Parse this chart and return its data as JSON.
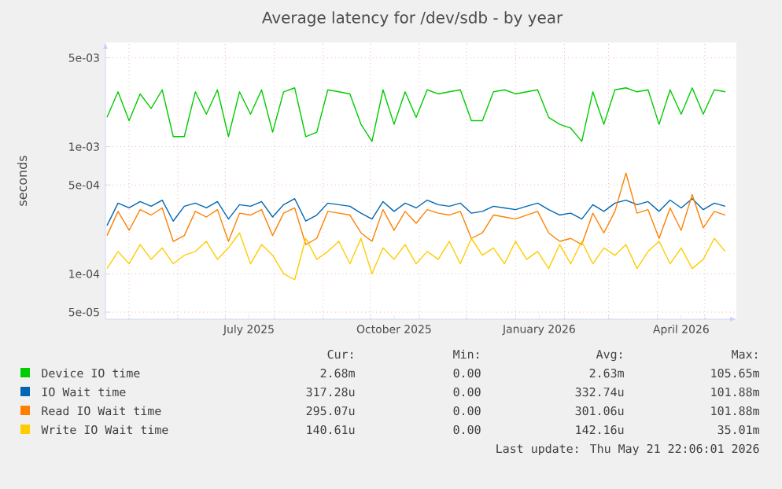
{
  "chart_data": {
    "type": "line",
    "title": "Average latency for /dev/sdb - by year",
    "ylabel": "seconds",
    "log": true,
    "grid": true,
    "legend": "bottom",
    "xlim": [
      "2025-04-16",
      "2026-05-21"
    ],
    "ylim": [
      4.4e-05,
      0.0066
    ],
    "yticks": [
      {
        "value": 5e-05,
        "label": "5e-05"
      },
      {
        "value": 0.0001,
        "label": "1e-04"
      },
      {
        "value": 0.0005,
        "label": "5e-04"
      },
      {
        "value": 0.001,
        "label": "1e-03"
      },
      {
        "value": 0.005,
        "label": "5e-03"
      }
    ],
    "xticks": [
      {
        "value": "2025-05-01",
        "label": null
      },
      {
        "value": "2025-06-01",
        "label": null
      },
      {
        "value": "2025-07-01",
        "label": null
      },
      {
        "value": "2025-07-16",
        "label": "July 2025"
      },
      {
        "value": "2025-08-01",
        "label": null
      },
      {
        "value": "2025-09-01",
        "label": null
      },
      {
        "value": "2025-10-01",
        "label": null
      },
      {
        "value": "2025-10-16",
        "label": "October 2025"
      },
      {
        "value": "2025-11-01",
        "label": null
      },
      {
        "value": "2025-12-01",
        "label": null
      },
      {
        "value": "2026-01-01",
        "label": null
      },
      {
        "value": "2026-01-16",
        "label": "January 2026"
      },
      {
        "value": "2026-02-01",
        "label": null
      },
      {
        "value": "2026-03-01",
        "label": null
      },
      {
        "value": "2026-04-01",
        "label": null
      },
      {
        "value": "2026-04-16",
        "label": "April 2026"
      },
      {
        "value": "2026-05-01",
        "label": null
      }
    ],
    "x": [
      "2025-04-17",
      "2025-04-24",
      "2025-05-01",
      "2025-05-08",
      "2025-05-15",
      "2025-05-22",
      "2025-05-29",
      "2025-06-05",
      "2025-06-12",
      "2025-06-19",
      "2025-06-26",
      "2025-07-03",
      "2025-07-10",
      "2025-07-17",
      "2025-07-24",
      "2025-07-31",
      "2025-08-07",
      "2025-08-14",
      "2025-08-21",
      "2025-08-28",
      "2025-09-04",
      "2025-09-11",
      "2025-09-18",
      "2025-09-25",
      "2025-10-02",
      "2025-10-09",
      "2025-10-16",
      "2025-10-23",
      "2025-10-30",
      "2025-11-06",
      "2025-11-13",
      "2025-11-20",
      "2025-11-27",
      "2025-12-04",
      "2025-12-11",
      "2025-12-18",
      "2025-12-25",
      "2026-01-01",
      "2026-01-08",
      "2026-01-15",
      "2026-01-22",
      "2026-01-29",
      "2026-02-05",
      "2026-02-12",
      "2026-02-19",
      "2026-02-26",
      "2026-03-05",
      "2026-03-12",
      "2026-03-19",
      "2026-03-26",
      "2026-04-02",
      "2026-04-09",
      "2026-04-16",
      "2026-04-23",
      "2026-04-30",
      "2026-05-07",
      "2026-05-14"
    ],
    "series": [
      {
        "name": "Device IO time",
        "color": "#00cc00",
        "values": [
          0.0017,
          0.0027,
          0.0016,
          0.0026,
          0.002,
          0.0028,
          0.0012,
          0.0012,
          0.0027,
          0.0018,
          0.0028,
          0.0012,
          0.0027,
          0.0018,
          0.0028,
          0.0013,
          0.0027,
          0.0029,
          0.0012,
          0.0013,
          0.0028,
          0.0027,
          0.0026,
          0.0015,
          0.0011,
          0.0028,
          0.0015,
          0.0027,
          0.0017,
          0.0028,
          0.0026,
          0.0027,
          0.0028,
          0.0016,
          0.0016,
          0.0027,
          0.0028,
          0.0026,
          0.0027,
          0.0028,
          0.0017,
          0.0015,
          0.0014,
          0.0011,
          0.0027,
          0.0015,
          0.0028,
          0.0029,
          0.0027,
          0.0028,
          0.0015,
          0.0028,
          0.0018,
          0.0029,
          0.0018,
          0.0028,
          0.0027
        ]
      },
      {
        "name": "IO Wait time",
        "color": "#0066b3",
        "values": [
          0.00024,
          0.00036,
          0.00033,
          0.00037,
          0.00034,
          0.00038,
          0.00026,
          0.00034,
          0.00036,
          0.00033,
          0.00037,
          0.00027,
          0.00035,
          0.00034,
          0.00037,
          0.00028,
          0.00035,
          0.00039,
          0.00026,
          0.00029,
          0.00036,
          0.00035,
          0.00034,
          0.0003,
          0.00027,
          0.00037,
          0.00031,
          0.00036,
          0.00033,
          0.00038,
          0.00035,
          0.00034,
          0.00036,
          0.0003,
          0.00031,
          0.00034,
          0.00033,
          0.00032,
          0.00034,
          0.00036,
          0.00032,
          0.00029,
          0.0003,
          0.00027,
          0.00035,
          0.00031,
          0.00036,
          0.00038,
          0.00035,
          0.00037,
          0.00031,
          0.00038,
          0.00033,
          0.00039,
          0.00032,
          0.00036,
          0.00034
        ]
      },
      {
        "name": "Read IO Wait time",
        "color": "#ff8000",
        "values": [
          0.0002,
          0.00031,
          0.00022,
          0.00032,
          0.00029,
          0.00033,
          0.00018,
          0.0002,
          0.00031,
          0.00028,
          0.00032,
          0.00018,
          0.0003,
          0.00029,
          0.00032,
          0.0002,
          0.0003,
          0.00033,
          0.00017,
          0.00019,
          0.00031,
          0.0003,
          0.00029,
          0.00021,
          0.00018,
          0.00032,
          0.00022,
          0.00031,
          0.00025,
          0.00032,
          0.0003,
          0.00029,
          0.00031,
          0.00019,
          0.00021,
          0.00029,
          0.00028,
          0.00027,
          0.00029,
          0.00031,
          0.00021,
          0.00018,
          0.00019,
          0.00017,
          0.0003,
          0.00021,
          0.00031,
          0.00062,
          0.0003,
          0.00032,
          0.00019,
          0.00033,
          0.00022,
          0.00042,
          0.00023,
          0.00031,
          0.00029
        ]
      },
      {
        "name": "Write IO Wait time",
        "color": "#ffcc00",
        "values": [
          0.00011,
          0.00015,
          0.00012,
          0.00017,
          0.00013,
          0.00016,
          0.00012,
          0.00014,
          0.00015,
          0.00018,
          0.00013,
          0.00016,
          0.00021,
          0.00012,
          0.00017,
          0.00014,
          0.0001,
          9e-05,
          0.00019,
          0.00013,
          0.00015,
          0.00018,
          0.00012,
          0.00019,
          0.0001,
          0.00016,
          0.00013,
          0.00017,
          0.00012,
          0.00015,
          0.00013,
          0.00018,
          0.00012,
          0.00019,
          0.00014,
          0.00016,
          0.00012,
          0.00018,
          0.00013,
          0.00015,
          0.00011,
          0.00017,
          0.00012,
          0.00018,
          0.00012,
          0.00016,
          0.00014,
          0.00017,
          0.00011,
          0.00015,
          0.00018,
          0.00012,
          0.00016,
          0.00011,
          0.00013,
          0.00019,
          0.00015
        ]
      }
    ],
    "annotations": [
      "Cur:",
      "Min:",
      "Avg:",
      "Max:",
      "2.68m",
      "0.00",
      "2.63m",
      "105.65m",
      "317.28u",
      "0.00",
      "332.74u",
      "101.88m",
      "295.07u",
      "0.00",
      "301.06u",
      "101.88m",
      "140.61u",
      "0.00",
      "142.16u",
      "35.01m",
      "Last update: Thu May 21 22:06:01 2026"
    ]
  }
}
